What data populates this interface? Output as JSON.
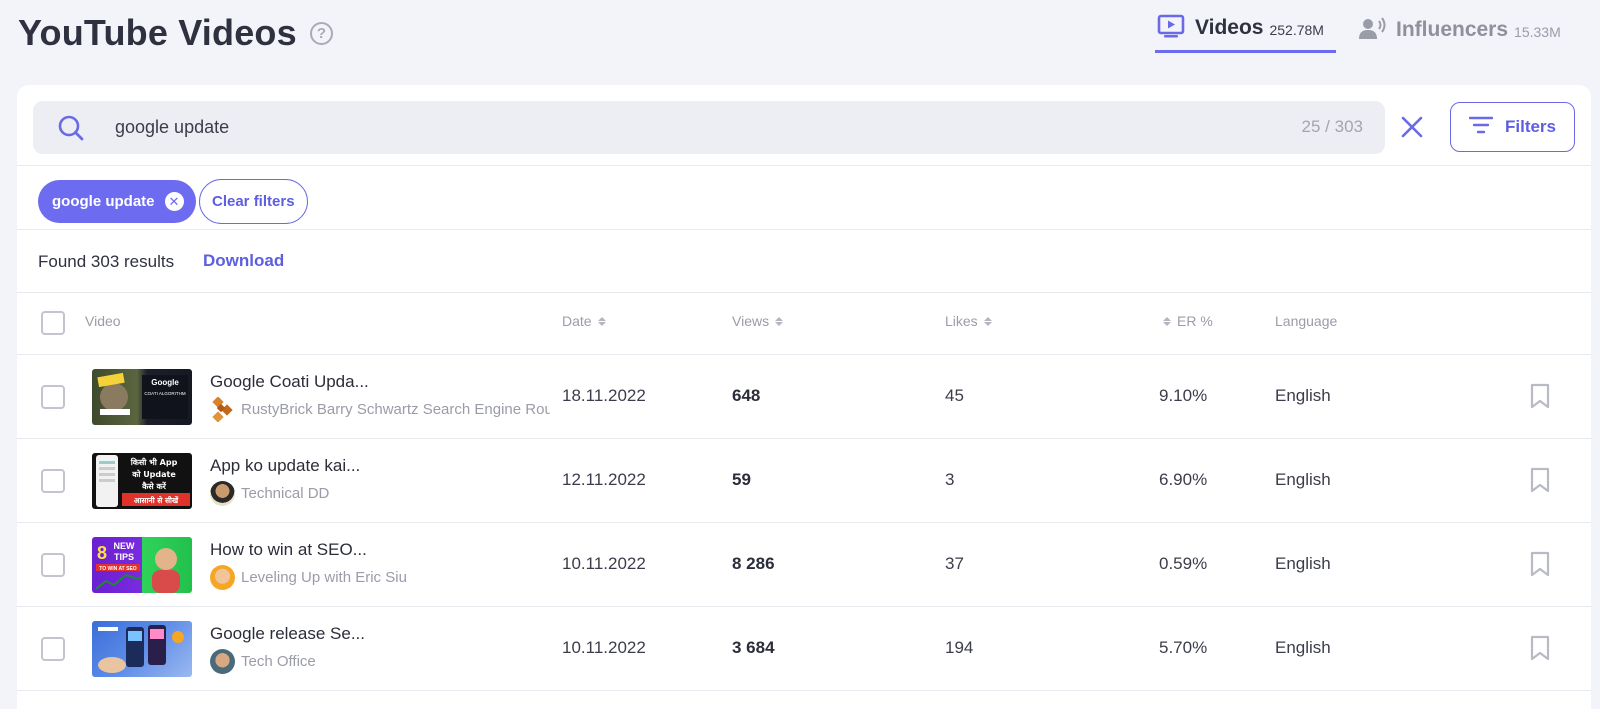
{
  "page": {
    "title": "YouTube Videos",
    "help": "?"
  },
  "tabs": [
    {
      "label": "Videos",
      "count": "252.78M",
      "icon": "video-play-icon",
      "active": true
    },
    {
      "label": "Influencers",
      "count": "15.33M",
      "icon": "influencer-speaker-icon",
      "active": false
    }
  ],
  "search": {
    "value": "google update",
    "placeholder": "",
    "count": "25 / 303"
  },
  "filters_button": {
    "label": "Filters"
  },
  "active_filters": [
    {
      "label": "google update"
    }
  ],
  "clear_filters_label": "Clear filters",
  "results": {
    "found_text": "Found 303 results",
    "download_label": "Download"
  },
  "table": {
    "columns": [
      "Video",
      "Date",
      "Views",
      "Likes",
      "ER %",
      "Language"
    ],
    "rows": [
      {
        "title": "Google Coati Upda...",
        "channel": "RustyBrick Barry Schwartz Search Engine Roundtable",
        "date": "18.11.2022",
        "views": "648",
        "likes": "45",
        "er": "9.10%",
        "language": "English"
      },
      {
        "title": "App ko update kai...",
        "channel": "Technical DD",
        "date": "12.11.2022",
        "views": "59",
        "likes": "3",
        "er": "6.90%",
        "language": "English"
      },
      {
        "title": "How to win at SEO...",
        "channel": "Leveling Up with Eric Siu",
        "date": "10.11.2022",
        "views": "8 286",
        "likes": "37",
        "er": "0.59%",
        "language": "English"
      },
      {
        "title": "Google release Se...",
        "channel": "Tech Office",
        "date": "10.11.2022",
        "views": "3 684",
        "likes": "194",
        "er": "5.70%",
        "language": "English"
      }
    ]
  },
  "thumbnails": {
    "row0": {
      "lines": [
        "Google",
        "COATI ALGORITHM"
      ]
    },
    "row1": {
      "lines": [
        "किसी भी App",
        "को Update",
        "कैसे करें",
        "आसानी से सीखें"
      ]
    },
    "row2": {
      "lines": [
        "8",
        "NEW",
        "TIPS",
        "TO WIN AT SEO"
      ]
    }
  },
  "colors": {
    "accent": "#6d6cf0",
    "background": "#f3f4f9",
    "panel": "#ffffff"
  }
}
